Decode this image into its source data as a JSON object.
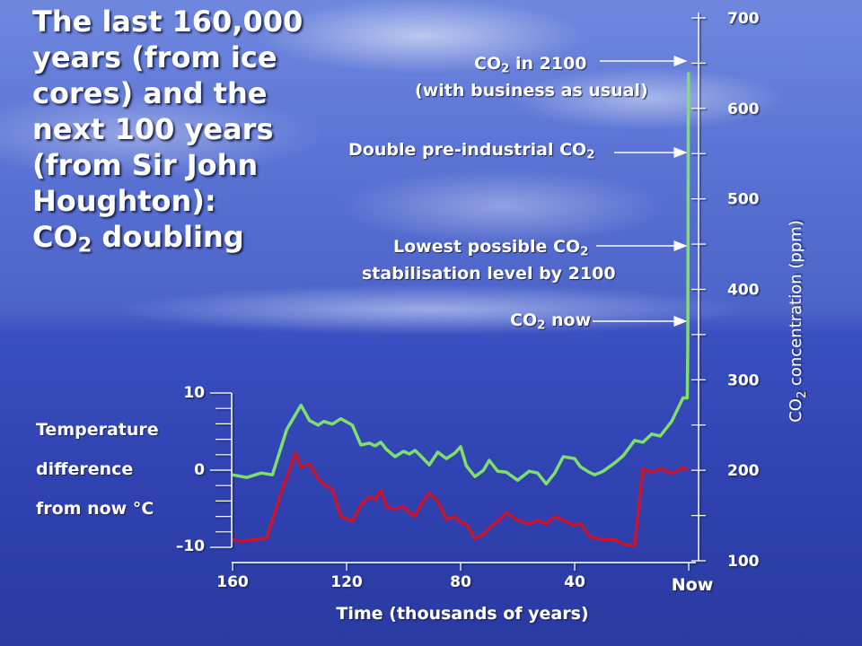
{
  "title": "The last 160,000\nyears (from ice\ncores) and the\nnext 100 years\n(from Sir John\nHoughton):",
  "title_last": {
    "before": "CO",
    "sub": "2",
    "after": " doubling"
  },
  "annotations": {
    "co2_2100_l1": {
      "before": "CO",
      "sub": "2",
      "after": " in 2100"
    },
    "co2_2100_l2": "(with business as usual)",
    "double": {
      "before": "Double pre-industrial CO",
      "sub": "2",
      "after": ""
    },
    "lowest_l1": {
      "before": "Lowest possible CO",
      "sub": "2",
      "after": ""
    },
    "lowest_l2": "stabilisation level by 2100",
    "now": {
      "before": "CO",
      "sub": "2",
      "after": " now"
    }
  },
  "temp_label": [
    "Temperature",
    "difference",
    "from now °C"
  ],
  "colors": {
    "co2": "#7ee06a",
    "temp": "#c8142e",
    "axis": "#ffffff"
  },
  "chart_data": {
    "type": "line",
    "xlabel": "Time (thousands of years)",
    "x_ticks": [
      "160",
      "120",
      "80",
      "40",
      "Now"
    ],
    "xlim": [
      160,
      0
    ],
    "y_left": {
      "label": [
        "Temperature",
        "difference",
        "from now °C"
      ],
      "ticks": [
        "10",
        "0",
        "–10"
      ],
      "lim": [
        -10,
        10
      ]
    },
    "y_right": {
      "label": {
        "before": "CO",
        "sub": "2",
        "after": " concentration (ppm)"
      },
      "ticks": [
        "700",
        "600",
        "500",
        "400",
        "300",
        "200",
        "100"
      ],
      "lim": [
        100,
        700
      ]
    },
    "series": [
      {
        "axis": "right",
        "x": [
          160,
          155,
          150,
          146,
          141,
          136,
          133,
          130,
          128,
          125,
          122,
          118,
          115,
          112,
          110,
          108,
          106,
          103,
          100,
          98,
          96,
          94,
          91,
          88,
          85,
          82,
          80,
          78,
          75,
          72,
          70,
          67,
          64,
          60,
          56,
          53,
          50,
          47,
          44,
          40,
          38,
          35,
          33,
          30,
          26,
          23,
          19,
          16,
          13,
          10,
          6,
          2,
          0.5,
          0.3,
          0.1
        ],
        "y": [
          195,
          192,
          197,
          195,
          245,
          272,
          255,
          250,
          254,
          251,
          257,
          250,
          228,
          230,
          227,
          231,
          223,
          215,
          221,
          218,
          222,
          216,
          206,
          220,
          213,
          219,
          226,
          205,
          193,
          200,
          211,
          199,
          198,
          189,
          199,
          197,
          185,
          197,
          215,
          213,
          204,
          198,
          195,
          199,
          208,
          216,
          233,
          231,
          240,
          238,
          254,
          280,
          280,
          340,
          640
        ]
      },
      {
        "axis": "left",
        "x": [
          160,
          157,
          152,
          148,
          143,
          138,
          136,
          133,
          130,
          128,
          125,
          122,
          118,
          115,
          112,
          110,
          108,
          106,
          103,
          100,
          98,
          96,
          94,
          91,
          88,
          85,
          82,
          80,
          78,
          75,
          72,
          70,
          67,
          64,
          60,
          56,
          53,
          50,
          47,
          44,
          40,
          38,
          35,
          33,
          30,
          26,
          23,
          19,
          16,
          13,
          10,
          6,
          2,
          0.5
        ],
        "y": [
          -9,
          -9.2,
          -9,
          -8.8,
          -3,
          2.2,
          0.4,
          0.8,
          -1.1,
          -1.8,
          -2.5,
          -6,
          -6.6,
          -4.5,
          -3.5,
          -3.8,
          -2.6,
          -4.8,
          -5,
          -4.8,
          -5.5,
          -6,
          -4.5,
          -3,
          -4,
          -6.4,
          -6,
          -6.8,
          -7,
          -8.9,
          -8.3,
          -7.5,
          -6.6,
          -5.5,
          -6.5,
          -7,
          -6.5,
          -7,
          -6,
          -6.5,
          -7.2,
          -6.9,
          -8.5,
          -8.8,
          -9,
          -9,
          -9.6,
          -9.8,
          0.2,
          -0.3,
          0.2,
          -0.4,
          0.3,
          0
        ]
      }
    ]
  }
}
